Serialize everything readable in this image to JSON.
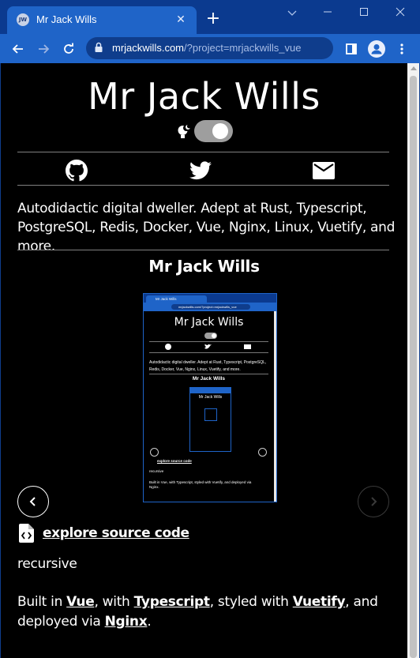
{
  "browser": {
    "tab": {
      "favicon_text": "JW",
      "title": "Mr Jack Wills",
      "close_glyph": "✕"
    },
    "new_tab_glyph": "+",
    "window": {
      "minimize_glyph": "⌄",
      "maximize_glyph": "☐",
      "close_glyph": "✕"
    },
    "url_host": "mrjackwills.com",
    "url_path": "/?project=mrjackwills_vue"
  },
  "page": {
    "title": "Mr Jack Wills",
    "bio": "Autodidactic digital dweller. Adept at Rust, Typescript, PostgreSQL, Redis, Docker, Vue, Nginx, Linux, Vuetify, and more.",
    "project": {
      "title": "Mr Jack Wills",
      "source_link": "explore source code",
      "tagline": "recursive",
      "built_prefix": "Built in ",
      "built_vue": "Vue",
      "built_with": ", with ",
      "built_typescript": "Typescript",
      "built_styled": ", styled with ",
      "built_vuetify": "Vuetify",
      "built_deployed": ", and deployed via ",
      "built_nginx": "Nginx",
      "built_end": "."
    },
    "preview": {
      "tab_title": "Mr Jack Wills",
      "url": "mrjackwills.com/?project=mrjackwills_vue",
      "heading": "Mr Jack Wills",
      "bio": "Autodidactic digital dweller. Adept at Rust, Typescript, PostgreSQL, Redis, Docker, Vue, Nginx, Linux, Vuetify, and more.",
      "project_title": "Mr Jack Wills",
      "inner_heading": "Mr Jack Wills",
      "source_link": "explore source code",
      "tagline": "recursive",
      "built": "Built in Vue, with Typescript, styled with Vuetify, and deployed via Nginx."
    }
  },
  "colors": {
    "chrome_dark": "#0b3a8f",
    "chrome_tab": "#1f64c8",
    "page_bg": "#000000",
    "text": "#ffffff",
    "toggle_track": "#9e9e9e"
  },
  "icons": {
    "social": [
      "github-icon",
      "twitter-icon",
      "mail-icon"
    ],
    "theme": "lightbulb-moon-icon",
    "nav": [
      "chevron-left-icon",
      "chevron-right-icon"
    ]
  }
}
